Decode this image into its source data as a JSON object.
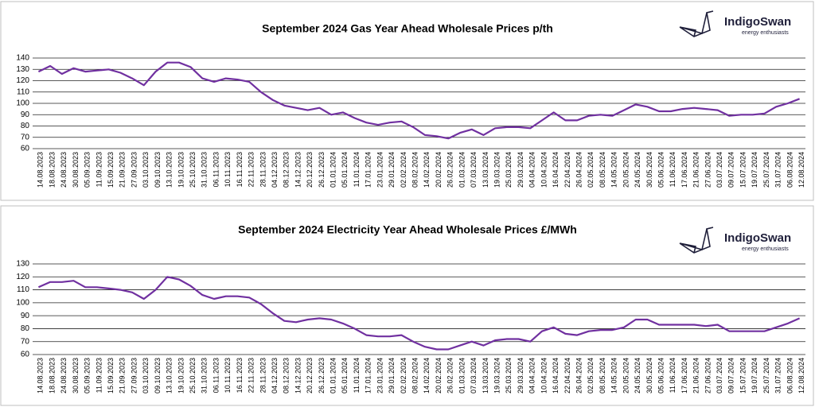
{
  "logo": {
    "name": "IndigoSwan",
    "tagline": "energy enthusiasts"
  },
  "chart_data": [
    {
      "type": "line",
      "title": "September 2024 Gas Year Ahead Wholesale Prices p/th",
      "categories": [
        "14.08.2023",
        "18.08.2023",
        "24.08.2023",
        "30.08.2023",
        "05.09.2023",
        "11.09.2023",
        "15.09.2023",
        "21.09.2023",
        "27.09.2023",
        "03.10.2023",
        "09.10.2023",
        "13.10.2023",
        "19.10.2023",
        "25.10.2023",
        "31.10.2023",
        "06.11.2023",
        "10.11.2023",
        "16.11.2023",
        "22.11.2023",
        "28.11.2023",
        "04.12.2023",
        "08.12.2023",
        "14.12.2023",
        "20.12.2023",
        "26.12.2023",
        "01.01.2024",
        "05.01.2024",
        "11.01.2024",
        "17.01.2024",
        "23.01.2024",
        "29.01.2024",
        "02.02.2024",
        "08.02.2024",
        "14.02.2024",
        "20.02.2024",
        "26.02.2024",
        "01.03.2024",
        "07.03.2024",
        "13.03.2024",
        "19.03.2024",
        "25.03.2024",
        "29.03.2024",
        "04.04.2024",
        "10.04.2024",
        "16.04.2024",
        "22.04.2024",
        "26.04.2024",
        "02.05.2024",
        "08.05.2024",
        "14.05.2024",
        "20.05.2024",
        "24.05.2024",
        "30.05.2024",
        "05.06.2024",
        "11.06.2024",
        "17.06.2024",
        "21.06.2024",
        "27.06.2024",
        "03.07.2024",
        "09.07.2024",
        "15.07.2024",
        "19.07.2024",
        "25.07.2024",
        "31.07.2024",
        "06.08.2024",
        "12.08.2024"
      ],
      "values": [
        128,
        133,
        126,
        131,
        128,
        129,
        130,
        127,
        122,
        116,
        128,
        136,
        136,
        132,
        122,
        119,
        122,
        121,
        119,
        110,
        103,
        98,
        96,
        94,
        96,
        90,
        92,
        87,
        83,
        81,
        83,
        84,
        79,
        72,
        71,
        69,
        74,
        77,
        72,
        78,
        79,
        79,
        78,
        85,
        92,
        85,
        85,
        89,
        90,
        89,
        94,
        99,
        97,
        93,
        93,
        95,
        96,
        95,
        94,
        89,
        90,
        90,
        91,
        97,
        100,
        104
      ],
      "color": "#7030a0",
      "ylim": [
        60,
        140
      ],
      "yticks": [
        60,
        70,
        80,
        90,
        100,
        110,
        120,
        130,
        140
      ],
      "grid": true
    },
    {
      "type": "line",
      "title": "September 2024 Electricity Year Ahead Wholesale Prices £/MWh",
      "categories": [
        "14.08.2023",
        "18.08.2023",
        "24.08.2023",
        "30.08.2023",
        "05.09.2023",
        "11.09.2023",
        "15.09.2023",
        "21.09.2023",
        "27.09.2023",
        "03.10.2023",
        "09.10.2023",
        "13.10.2023",
        "19.10.2023",
        "25.10.2023",
        "31.10.2023",
        "06.11.2023",
        "10.11.2023",
        "16.11.2023",
        "22.11.2023",
        "28.11.2023",
        "04.12.2023",
        "08.12.2023",
        "14.12.2023",
        "20.12.2023",
        "26.12.2023",
        "01.01.2024",
        "05.01.2024",
        "11.01.2024",
        "17.01.2024",
        "23.01.2024",
        "29.01.2024",
        "02.02.2024",
        "08.02.2024",
        "14.02.2024",
        "20.02.2024",
        "26.02.2024",
        "01.03.2024",
        "07.03.2024",
        "13.03.2024",
        "19.03.2024",
        "25.03.2024",
        "29.03.2024",
        "04.04.2024",
        "10.04.2024",
        "16.04.2024",
        "22.04.2024",
        "26.04.2024",
        "02.05.2024",
        "08.05.2024",
        "14.05.2024",
        "20.05.2024",
        "24.05.2024",
        "30.05.2024",
        "05.06.2024",
        "11.06.2024",
        "17.06.2024",
        "21.06.2024",
        "27.06.2024",
        "03.07.2024",
        "09.07.2024",
        "15.07.2024",
        "19.07.2024",
        "25.07.2024",
        "31.07.2024",
        "06.08.2024",
        "12.08.2024"
      ],
      "values": [
        112,
        116,
        116,
        117,
        112,
        112,
        111,
        110,
        108,
        103,
        110,
        120,
        118,
        113,
        106,
        103,
        105,
        105,
        104,
        99,
        92,
        86,
        85,
        87,
        88,
        87,
        84,
        80,
        75,
        74,
        74,
        75,
        70,
        66,
        64,
        64,
        67,
        70,
        67,
        71,
        72,
        72,
        70,
        78,
        81,
        76,
        75,
        78,
        79,
        79,
        81,
        87,
        87,
        83,
        83,
        83,
        83,
        82,
        83,
        78,
        78,
        78,
        78,
        81,
        84,
        88
      ],
      "color": "#7030a0",
      "ylim": [
        60,
        130
      ],
      "yticks": [
        60,
        70,
        80,
        90,
        100,
        110,
        120,
        130
      ],
      "grid": true
    }
  ]
}
